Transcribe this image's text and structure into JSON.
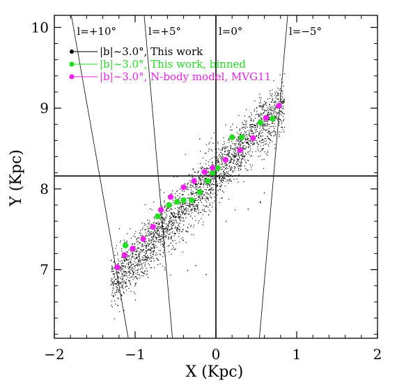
{
  "chart_data": {
    "type": "scatter",
    "title": "",
    "xlabel": "X (Kpc)",
    "ylabel": "Y (Kpc)",
    "xlim": [
      -2,
      2
    ],
    "ylim": [
      6.15,
      10.15
    ],
    "xticks": [
      -2,
      -1,
      0,
      1,
      2
    ],
    "xtick_labels": [
      "−2",
      "−1",
      "0",
      "1",
      "2"
    ],
    "yticks": [
      7,
      8,
      9,
      10
    ],
    "ytick_labels": [
      "7",
      "8",
      "9",
      "10"
    ],
    "grid": false,
    "legend_position": "top-left",
    "reference_lines": {
      "x": 0,
      "y": 8.16
    },
    "sightlines": [
      {
        "label": "l=+10°",
        "longitude_deg": 10
      },
      {
        "label": "l=+5°",
        "longitude_deg": 5
      },
      {
        "label": "l=0°",
        "longitude_deg": 0
      },
      {
        "label": "l=−5°",
        "longitude_deg": -5
      }
    ],
    "series": [
      {
        "name": "|b|~3.0°, This work",
        "color": "#000000",
        "marker": "dot",
        "cloud": {
          "count": 2600,
          "x_range": [
            -1.3,
            0.85
          ],
          "slope": 1.05,
          "intercept": 8.18,
          "scatter_y": 0.17
        },
        "outliers": [
          [
            -0.37,
            7.48
          ],
          [
            -0.36,
            7.47
          ],
          [
            0.55,
            7.83
          ],
          [
            0.55,
            7.84
          ],
          [
            -0.35,
            6.99
          ],
          [
            -0.12,
            6.94
          ],
          [
            -0.09,
            7.68
          ],
          [
            0.68,
            8.6
          ],
          [
            0.4,
            8.57
          ],
          [
            -0.25,
            7.05
          ],
          [
            0.08,
            8.48
          ],
          [
            0.4,
            7.75
          ],
          [
            0.6,
            7.95
          ],
          [
            -0.2,
            8.62
          ]
        ]
      },
      {
        "name": "|b|~3.0°, This work, binned",
        "color": "#22dd22",
        "marker": "circle",
        "points": [
          [
            -1.12,
            7.3
          ],
          [
            -0.72,
            7.66
          ],
          [
            -0.58,
            7.8
          ],
          [
            -0.48,
            7.84
          ],
          [
            -0.4,
            7.86
          ],
          [
            -0.3,
            7.86
          ],
          [
            -0.2,
            7.96
          ],
          [
            -0.1,
            8.1
          ],
          [
            -0.04,
            8.2
          ],
          [
            0.02,
            8.26
          ],
          [
            0.2,
            8.64
          ],
          [
            0.32,
            8.64
          ],
          [
            0.55,
            8.82
          ],
          [
            0.7,
            8.87
          ]
        ]
      },
      {
        "name": "|b|~3.0°, N-body model, MVG11",
        "color": "#ee22ee",
        "marker": "circle",
        "points": [
          [
            -1.22,
            7.03
          ],
          [
            -1.13,
            7.18
          ],
          [
            -1.03,
            7.26
          ],
          [
            -0.9,
            7.38
          ],
          [
            -0.78,
            7.53
          ],
          [
            -0.68,
            7.74
          ],
          [
            -0.56,
            7.9
          ],
          [
            -0.4,
            8.02
          ],
          [
            -0.27,
            8.1
          ],
          [
            -0.14,
            8.21
          ],
          [
            -0.04,
            8.26
          ],
          [
            0.12,
            8.36
          ],
          [
            0.3,
            8.48
          ],
          [
            0.46,
            8.63
          ],
          [
            0.62,
            8.88
          ],
          [
            0.78,
            9.03
          ]
        ]
      }
    ]
  }
}
